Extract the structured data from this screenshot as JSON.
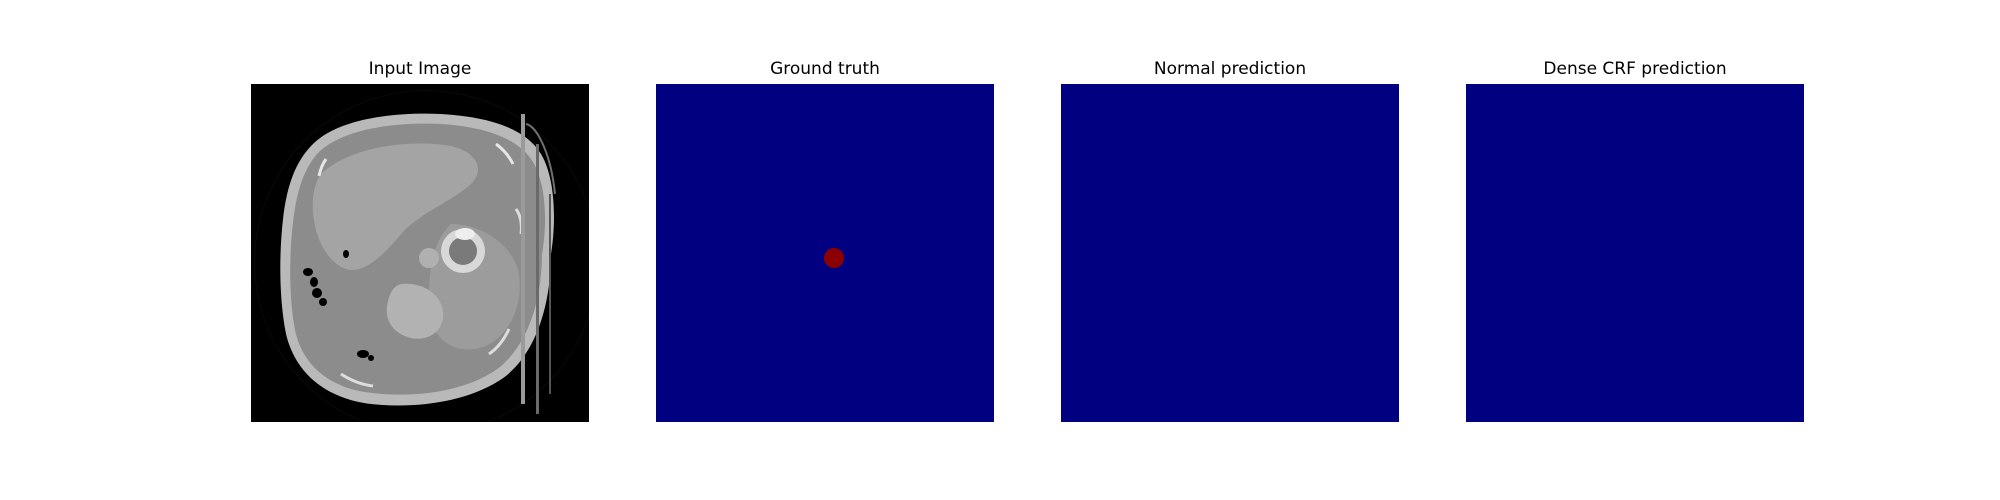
{
  "panels": [
    {
      "title": "Input Image"
    },
    {
      "title": "Ground truth"
    },
    {
      "title": "Normal prediction"
    },
    {
      "title": "Dense CRF prediction"
    }
  ],
  "colors": {
    "background_class": "#000080",
    "lesion_class": "#8b0000",
    "ct_background": "#000000"
  }
}
